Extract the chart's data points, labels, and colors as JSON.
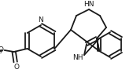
{
  "bond_color": "#1a1a1a",
  "bond_width": 1.3,
  "font_size": 6.5,
  "figsize": [
    1.69,
    0.93
  ],
  "dpi": 100,
  "xlim": [
    0,
    169
  ],
  "ylim": [
    0,
    93
  ]
}
